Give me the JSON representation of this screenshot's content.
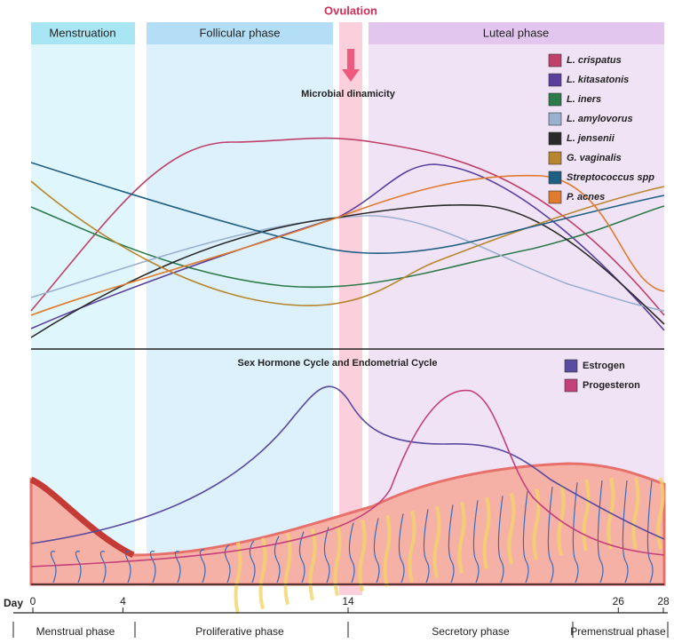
{
  "top_phases": [
    "Menstruation",
    "Follicular phase",
    "Luteal phase"
  ],
  "ovulation": "Ovulation",
  "microbial_label": "Microbial dinamicity",
  "microbes": [
    {
      "name": "L. crispatus",
      "color": "#c0406a"
    },
    {
      "name": "L. kitasatonis",
      "color": "#5b3f9e"
    },
    {
      "name": "L. iners",
      "color": "#2d7a4a"
    },
    {
      "name": "L. amylovorus",
      "color": "#9ab0cf"
    },
    {
      "name": "L. jensenii",
      "color": "#2a2a2a"
    },
    {
      "name": "G. vaginalis",
      "color": "#b8862e"
    },
    {
      "name": "Streptococcus spp",
      "color": "#1f5f84"
    },
    {
      "name": "P. acnes",
      "color": "#e07a2e"
    }
  ],
  "hormone_title": "Sex Hormone Cycle and Endometrial Cycle",
  "hormones": [
    {
      "name": "Estrogen",
      "color": "#5a4aa0"
    },
    {
      "name": "Progesteron",
      "color": "#c4407a"
    }
  ],
  "day_axis": {
    "label": "Day",
    "ticks": [
      0,
      4,
      14,
      26,
      28
    ]
  },
  "bottom_phases": [
    "Menstrual phase",
    "Proliferative phase",
    "Secretory phase",
    "Premenstrual phase"
  ]
}
